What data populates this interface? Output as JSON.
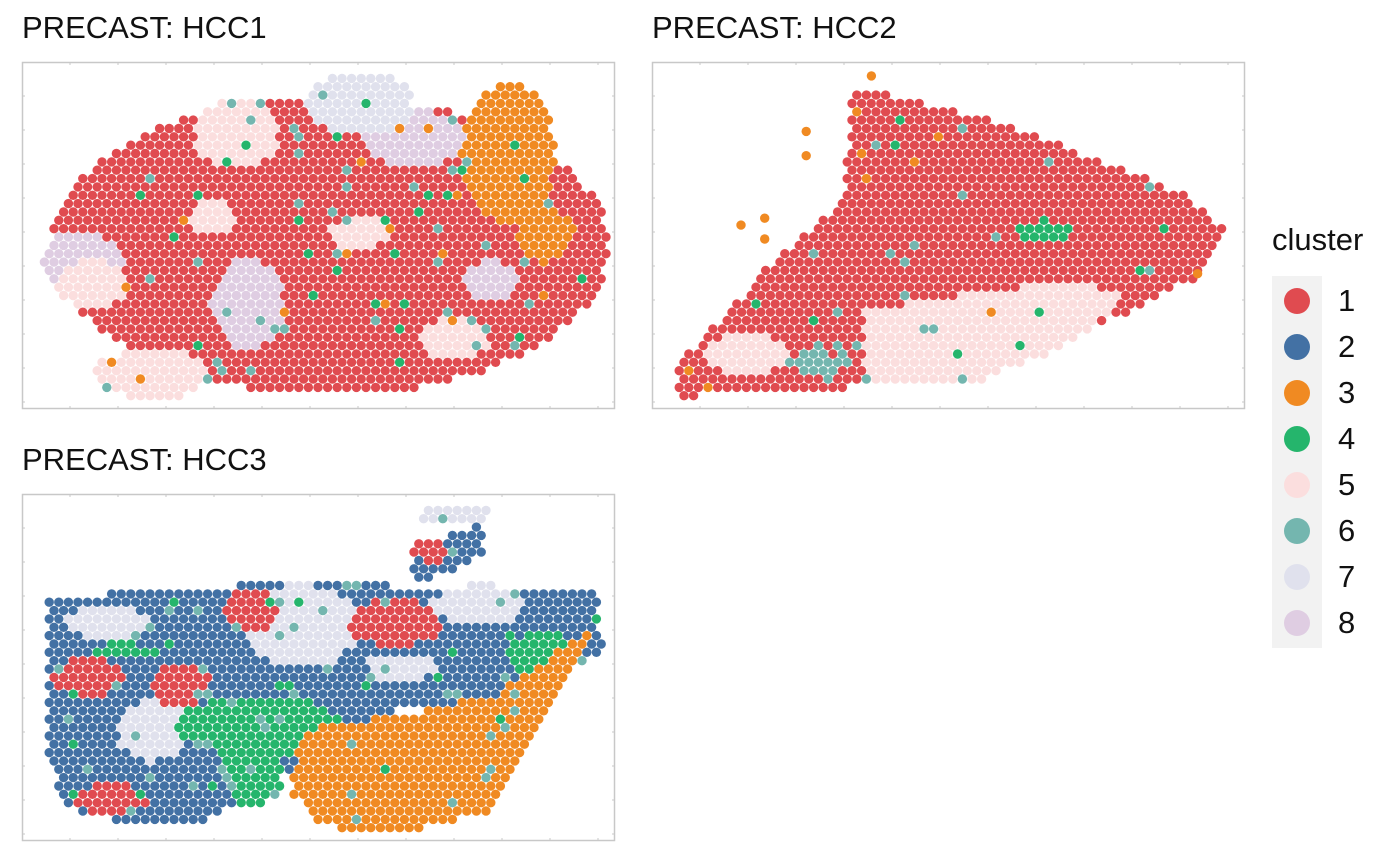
{
  "chart_data": [
    {
      "type": "scatter",
      "title": "PRECAST: HCC1",
      "xlabel": "",
      "ylabel": "",
      "grid": false,
      "note_regions": [
        {
          "cluster": "1",
          "shape": "ellipse",
          "center": [
            0.52,
            0.53
          ],
          "radius": [
            0.47,
            0.43
          ]
        },
        {
          "cluster": "8",
          "shape": "ellipse",
          "center": [
            0.1,
            0.58
          ],
          "radius": [
            0.07,
            0.09
          ]
        },
        {
          "cluster": "8",
          "shape": "ellipse",
          "center": [
            0.38,
            0.7
          ],
          "radius": [
            0.06,
            0.13
          ]
        },
        {
          "cluster": "8",
          "shape": "ellipse",
          "center": [
            0.66,
            0.22
          ],
          "radius": [
            0.09,
            0.08
          ]
        },
        {
          "cluster": "8",
          "shape": "ellipse",
          "center": [
            0.79,
            0.63
          ],
          "radius": [
            0.05,
            0.06
          ]
        },
        {
          "cluster": "5",
          "shape": "ellipse",
          "center": [
            0.36,
            0.21
          ],
          "radius": [
            0.07,
            0.1
          ]
        },
        {
          "cluster": "5",
          "shape": "ellipse",
          "center": [
            0.12,
            0.64
          ],
          "radius": [
            0.06,
            0.07
          ]
        },
        {
          "cluster": "5",
          "shape": "ellipse",
          "center": [
            0.32,
            0.45
          ],
          "radius": [
            0.04,
            0.05
          ]
        },
        {
          "cluster": "5",
          "shape": "ellipse",
          "center": [
            0.57,
            0.49
          ],
          "radius": [
            0.05,
            0.05
          ]
        },
        {
          "cluster": "5",
          "shape": "ellipse",
          "center": [
            0.73,
            0.8
          ],
          "radius": [
            0.06,
            0.06
          ]
        },
        {
          "cluster": "5",
          "shape": "ellipse",
          "center": [
            0.22,
            0.9
          ],
          "radius": [
            0.1,
            0.07
          ]
        },
        {
          "cluster": "7",
          "shape": "ellipse",
          "center": [
            0.57,
            0.12
          ],
          "radius": [
            0.09,
            0.09
          ]
        },
        {
          "cluster": "3",
          "shape": "ellipse",
          "center": [
            0.82,
            0.26
          ],
          "radius": [
            0.08,
            0.2
          ]
        },
        {
          "cluster": "3",
          "shape": "ellipse",
          "center": [
            0.88,
            0.5
          ],
          "radius": [
            0.05,
            0.08
          ]
        }
      ],
      "noise": [
        {
          "cluster": "6",
          "rate": 0.022
        },
        {
          "cluster": "4",
          "rate": 0.014
        },
        {
          "cluster": "3",
          "rate": 0.006
        }
      ]
    },
    {
      "type": "scatter",
      "title": "PRECAST: HCC2",
      "xlabel": "",
      "ylabel": "",
      "grid": false,
      "note_regions": [
        {
          "cluster": "1",
          "shape": "polygon",
          "points": [
            [
              0.04,
              0.97
            ],
            [
              0.04,
              0.88
            ],
            [
              0.14,
              0.7
            ],
            [
              0.2,
              0.58
            ],
            [
              0.32,
              0.4
            ],
            [
              0.34,
              0.07
            ],
            [
              0.6,
              0.18
            ],
            [
              0.9,
              0.38
            ],
            [
              0.97,
              0.49
            ],
            [
              0.92,
              0.62
            ],
            [
              0.8,
              0.72
            ],
            [
              0.7,
              0.8
            ],
            [
              0.5,
              0.92
            ],
            [
              0.3,
              0.94
            ],
            [
              0.15,
              0.95
            ]
          ]
        },
        {
          "cluster": "5",
          "shape": "polygon",
          "points": [
            [
              0.36,
              0.92
            ],
            [
              0.36,
              0.72
            ],
            [
              0.55,
              0.66
            ],
            [
              0.73,
              0.63
            ],
            [
              0.8,
              0.68
            ],
            [
              0.72,
              0.8
            ],
            [
              0.55,
              0.92
            ]
          ]
        },
        {
          "cluster": "5",
          "shape": "ellipse",
          "center": [
            0.16,
            0.84
          ],
          "radius": [
            0.07,
            0.06
          ]
        },
        {
          "cluster": "4",
          "shape": "ellipse",
          "center": [
            0.66,
            0.49
          ],
          "radius": [
            0.05,
            0.035
          ]
        },
        {
          "cluster": "6",
          "shape": "ellipse",
          "center": [
            0.28,
            0.87
          ],
          "radius": [
            0.05,
            0.03
          ]
        }
      ],
      "extra_points": [
        {
          "cluster": "3",
          "x": 0.37,
          "y": 0.04
        },
        {
          "cluster": "3",
          "x": 0.26,
          "y": 0.2
        },
        {
          "cluster": "3",
          "x": 0.26,
          "y": 0.27
        },
        {
          "cluster": "3",
          "x": 0.15,
          "y": 0.47
        },
        {
          "cluster": "3",
          "x": 0.19,
          "y": 0.45
        },
        {
          "cluster": "3",
          "x": 0.19,
          "y": 0.51
        },
        {
          "cluster": "3",
          "x": 0.92,
          "y": 0.61
        }
      ],
      "noise": [
        {
          "cluster": "6",
          "rate": 0.02
        },
        {
          "cluster": "4",
          "rate": 0.006
        },
        {
          "cluster": "3",
          "rate": 0.006
        }
      ]
    },
    {
      "type": "scatter",
      "title": "PRECAST: HCC3",
      "xlabel": "",
      "ylabel": "",
      "grid": false,
      "note_regions": [
        {
          "cluster": "2",
          "shape": "polygon",
          "points": [
            [
              0.04,
              0.3
            ],
            [
              0.4,
              0.26
            ],
            [
              0.97,
              0.27
            ],
            [
              0.98,
              0.45
            ],
            [
              0.88,
              0.55
            ],
            [
              0.8,
              0.6
            ],
            [
              0.6,
              0.63
            ],
            [
              0.45,
              0.8
            ],
            [
              0.3,
              0.96
            ],
            [
              0.1,
              0.93
            ],
            [
              0.06,
              0.86
            ],
            [
              0.04,
              0.7
            ]
          ]
        },
        {
          "cluster": "2",
          "shape": "polygon",
          "points": [
            [
              0.66,
              0.24
            ],
            [
              0.66,
              0.16
            ],
            [
              0.75,
              0.1
            ],
            [
              0.78,
              0.05
            ],
            [
              0.78,
              0.17
            ],
            [
              0.7,
              0.24
            ]
          ]
        },
        {
          "cluster": "7",
          "shape": "ellipse",
          "center": [
            0.47,
            0.38
          ],
          "radius": [
            0.1,
            0.12
          ]
        },
        {
          "cluster": "7",
          "shape": "ellipse",
          "center": [
            0.14,
            0.37
          ],
          "radius": [
            0.07,
            0.05
          ]
        },
        {
          "cluster": "7",
          "shape": "ellipse",
          "center": [
            0.77,
            0.32
          ],
          "radius": [
            0.08,
            0.06
          ]
        },
        {
          "cluster": "7",
          "shape": "ellipse",
          "center": [
            0.22,
            0.68
          ],
          "radius": [
            0.06,
            0.09
          ]
        },
        {
          "cluster": "7",
          "shape": "ellipse",
          "center": [
            0.64,
            0.5
          ],
          "radius": [
            0.06,
            0.04
          ]
        },
        {
          "cluster": "7",
          "shape": "ellipse",
          "center": [
            0.73,
            0.06
          ],
          "radius": [
            0.06,
            0.03
          ]
        },
        {
          "cluster": "1",
          "shape": "ellipse",
          "center": [
            0.63,
            0.37
          ],
          "radius": [
            0.08,
            0.07
          ]
        },
        {
          "cluster": "1",
          "shape": "ellipse",
          "center": [
            0.27,
            0.55
          ],
          "radius": [
            0.05,
            0.07
          ]
        },
        {
          "cluster": "1",
          "shape": "ellipse",
          "center": [
            0.11,
            0.53
          ],
          "radius": [
            0.06,
            0.06
          ]
        },
        {
          "cluster": "1",
          "shape": "ellipse",
          "center": [
            0.15,
            0.88
          ],
          "radius": [
            0.06,
            0.05
          ]
        },
        {
          "cluster": "1",
          "shape": "ellipse",
          "center": [
            0.39,
            0.33
          ],
          "radius": [
            0.05,
            0.06
          ]
        },
        {
          "cluster": "1",
          "shape": "ellipse",
          "center": [
            0.69,
            0.16
          ],
          "radius": [
            0.03,
            0.04
          ]
        },
        {
          "cluster": "4",
          "shape": "ellipse",
          "center": [
            0.4,
            0.67
          ],
          "radius": [
            0.14,
            0.09
          ]
        },
        {
          "cluster": "4",
          "shape": "ellipse",
          "center": [
            0.39,
            0.8
          ],
          "radius": [
            0.05,
            0.1
          ]
        },
        {
          "cluster": "4",
          "shape": "ellipse",
          "center": [
            0.88,
            0.47
          ],
          "radius": [
            0.06,
            0.08
          ]
        },
        {
          "cluster": "4",
          "shape": "ellipse",
          "center": [
            0.17,
            0.45
          ],
          "radius": [
            0.06,
            0.02
          ]
        },
        {
          "cluster": "3",
          "shape": "polygon",
          "points": [
            [
              0.47,
              0.68
            ],
            [
              0.63,
              0.64
            ],
            [
              0.8,
              0.58
            ],
            [
              0.88,
              0.48
            ],
            [
              0.97,
              0.38
            ],
            [
              0.9,
              0.6
            ],
            [
              0.86,
              0.72
            ],
            [
              0.78,
              0.92
            ],
            [
              0.65,
              0.97
            ],
            [
              0.5,
              0.96
            ],
            [
              0.45,
              0.85
            ]
          ]
        }
      ],
      "noise": [
        {
          "cluster": "6",
          "rate": 0.03
        },
        {
          "cluster": "4",
          "rate": 0.01
        }
      ]
    }
  ],
  "legend": {
    "title": "cluster",
    "items": [
      {
        "label": "1",
        "color": "#E04B50"
      },
      {
        "label": "2",
        "color": "#4371A4"
      },
      {
        "label": "3",
        "color": "#F08A22"
      },
      {
        "label": "4",
        "color": "#25B56C"
      },
      {
        "label": "5",
        "color": "#FBDEDE"
      },
      {
        "label": "6",
        "color": "#74B6AF"
      },
      {
        "label": "7",
        "color": "#E0E1ED"
      },
      {
        "label": "8",
        "color": "#DFCDE2"
      }
    ]
  },
  "panel_style": {
    "background": "#ffffff",
    "border_color": "#c8c8c8"
  }
}
